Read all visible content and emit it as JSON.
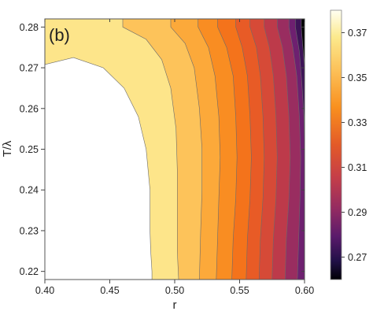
{
  "chart_data": {
    "type": "contour",
    "panel_label": "(b)",
    "xlabel": "r",
    "ylabel": "T/λ",
    "xlim": [
      0.4,
      0.6
    ],
    "ylim": [
      0.218,
      0.282
    ],
    "x_ticks": [
      "0.40",
      "0.45",
      "0.50",
      "0.55",
      "0.60"
    ],
    "y_ticks": [
      "0.22",
      "0.23",
      "0.24",
      "0.25",
      "0.26",
      "0.27",
      "0.28"
    ],
    "colorbar": {
      "range": [
        0.26,
        0.38
      ],
      "ticks": [
        "0.37",
        "0.35",
        "0.33",
        "0.31",
        "0.29",
        "0.27"
      ]
    },
    "contour_levels": [
      {
        "level": 0.36,
        "color": "#fde58a",
        "curve": [
          [
            0.4,
            0.2708
          ],
          [
            0.422,
            0.2725
          ],
          [
            0.445,
            0.27
          ],
          [
            0.461,
            0.265
          ],
          [
            0.472,
            0.258
          ],
          [
            0.478,
            0.25
          ],
          [
            0.481,
            0.24
          ],
          [
            0.481,
            0.23
          ],
          [
            0.4815,
            0.225
          ],
          [
            0.4825,
            0.22
          ]
        ]
      },
      {
        "level": 0.355,
        "color": "#fdc35a",
        "curve": [
          [
            0.46,
            0.28
          ],
          [
            0.478,
            0.277
          ],
          [
            0.49,
            0.272
          ],
          [
            0.497,
            0.265
          ],
          [
            0.501,
            0.255
          ],
          [
            0.502,
            0.245
          ],
          [
            0.502,
            0.235
          ],
          [
            0.502,
            0.225
          ],
          [
            0.503,
            0.218
          ]
        ]
      },
      {
        "level": 0.35,
        "color": "#fca93a",
        "curve": [
          [
            0.497,
            0.28
          ],
          [
            0.508,
            0.276
          ],
          [
            0.515,
            0.27
          ],
          [
            0.519,
            0.26
          ],
          [
            0.521,
            0.25
          ],
          [
            0.521,
            0.24
          ],
          [
            0.52,
            0.23
          ],
          [
            0.519,
            0.218
          ]
        ]
      },
      {
        "level": 0.345,
        "color": "#f98d22",
        "curve": [
          [
            0.518,
            0.28
          ],
          [
            0.526,
            0.275
          ],
          [
            0.531,
            0.268
          ],
          [
            0.534,
            0.258
          ],
          [
            0.535,
            0.248
          ],
          [
            0.534,
            0.238
          ],
          [
            0.533,
            0.228
          ],
          [
            0.532,
            0.218
          ]
        ]
      },
      {
        "level": 0.34,
        "color": "#f4731b",
        "curve": [
          [
            0.533,
            0.28
          ],
          [
            0.54,
            0.275
          ],
          [
            0.545,
            0.268
          ],
          [
            0.547,
            0.258
          ],
          [
            0.548,
            0.248
          ],
          [
            0.547,
            0.238
          ],
          [
            0.545,
            0.228
          ],
          [
            0.544,
            0.218
          ]
        ]
      },
      {
        "level": 0.335,
        "color": "#e85b26",
        "curve": [
          [
            0.547,
            0.28
          ],
          [
            0.552,
            0.275
          ],
          [
            0.556,
            0.268
          ],
          [
            0.558,
            0.258
          ],
          [
            0.559,
            0.248
          ],
          [
            0.558,
            0.238
          ],
          [
            0.556,
            0.228
          ],
          [
            0.555,
            0.218
          ]
        ]
      },
      {
        "level": 0.33,
        "color": "#d64a37",
        "curve": [
          [
            0.558,
            0.28
          ],
          [
            0.563,
            0.275
          ],
          [
            0.566,
            0.268
          ],
          [
            0.568,
            0.258
          ],
          [
            0.569,
            0.248
          ],
          [
            0.568,
            0.238
          ],
          [
            0.566,
            0.228
          ],
          [
            0.565,
            0.218
          ]
        ]
      },
      {
        "level": 0.325,
        "color": "#bd3a4a",
        "curve": [
          [
            0.569,
            0.28
          ],
          [
            0.573,
            0.275
          ],
          [
            0.576,
            0.268
          ],
          [
            0.578,
            0.258
          ],
          [
            0.579,
            0.248
          ],
          [
            0.578,
            0.238
          ],
          [
            0.576,
            0.228
          ],
          [
            0.575,
            0.218
          ]
        ]
      },
      {
        "level": 0.32,
        "color": "#992d60",
        "curve": [
          [
            0.579,
            0.28
          ],
          [
            0.583,
            0.275
          ],
          [
            0.586,
            0.268
          ],
          [
            0.588,
            0.258
          ],
          [
            0.589,
            0.248
          ],
          [
            0.588,
            0.238
          ],
          [
            0.586,
            0.228
          ],
          [
            0.585,
            0.218
          ]
        ]
      },
      {
        "level": 0.315,
        "color": "#6e2070",
        "curve": [
          [
            0.588,
            0.28
          ],
          [
            0.591,
            0.275
          ],
          [
            0.594,
            0.268
          ],
          [
            0.596,
            0.258
          ],
          [
            0.597,
            0.248
          ],
          [
            0.5965,
            0.238
          ],
          [
            0.5955,
            0.228
          ],
          [
            0.5945,
            0.218
          ]
        ]
      },
      {
        "level": 0.31,
        "color": "#3e1458",
        "curve": [
          [
            0.593,
            0.28
          ],
          [
            0.596,
            0.274
          ],
          [
            0.598,
            0.266
          ],
          [
            0.5995,
            0.258
          ],
          [
            0.6,
            0.25
          ]
        ]
      },
      {
        "level": 0.305,
        "color": "#000000",
        "curve": [
          [
            0.5975,
            0.28
          ],
          [
            0.5985,
            0.276
          ],
          [
            0.5995,
            0.272
          ],
          [
            0.6,
            0.27
          ]
        ]
      }
    ]
  }
}
